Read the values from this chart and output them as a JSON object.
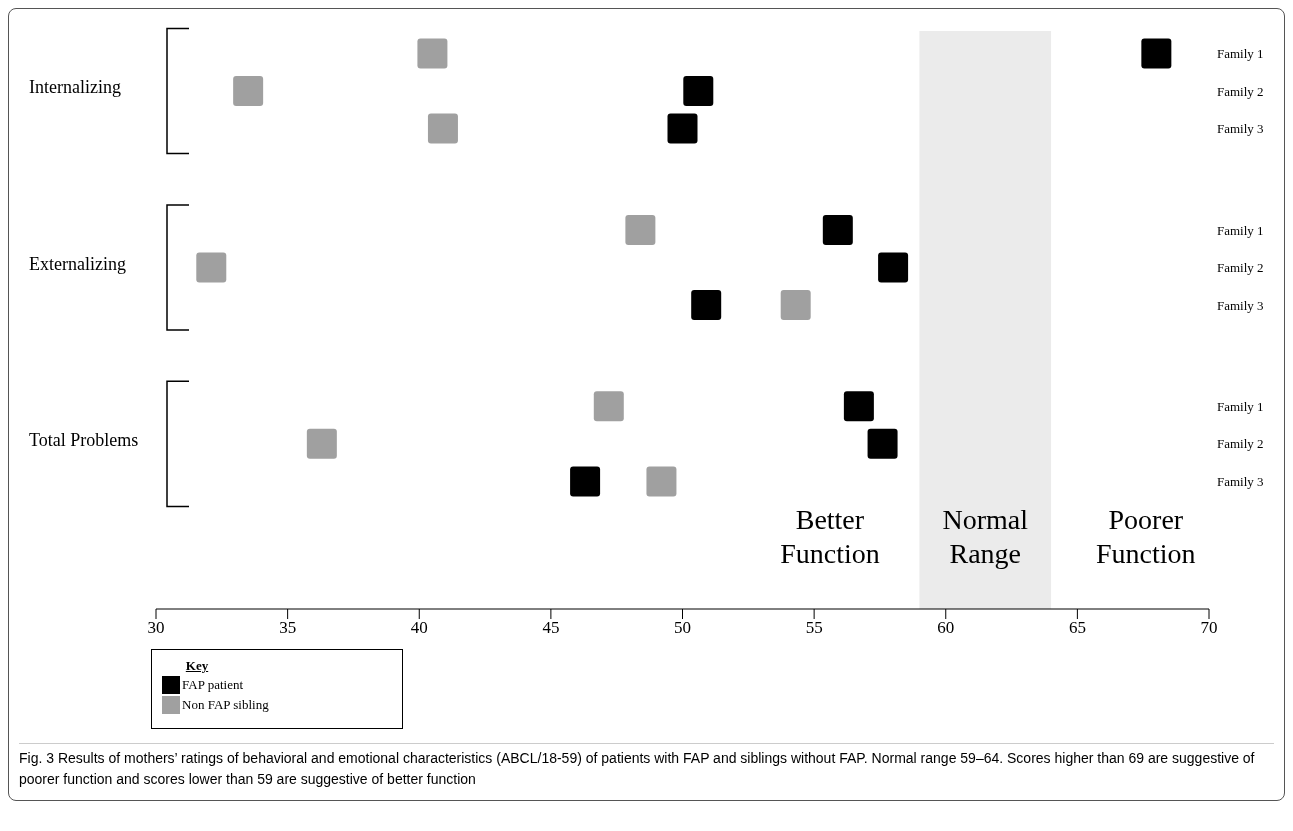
{
  "chart_data": {
    "type": "scatter",
    "orientation": "horizontal",
    "categories": [
      "Family 1",
      "Family 2",
      "Family 3",
      "Family 1",
      "Family 2",
      "Family 3",
      "Family 1",
      "Family 2",
      "Family 3"
    ],
    "series": [
      {
        "name": "FAP patient",
        "color": "#000000",
        "values": [
          68.0,
          50.6,
          50.0,
          55.9,
          58.0,
          50.9,
          56.7,
          57.6,
          46.3
        ]
      },
      {
        "name": "Non FAP sibling",
        "color": "#a0a0a0",
        "values": [
          40.5,
          33.5,
          40.9,
          48.4,
          32.1,
          54.3,
          47.2,
          36.3,
          49.2
        ]
      }
    ],
    "xlim": [
      30,
      70
    ],
    "xticks": [
      30,
      35,
      40,
      45,
      50,
      55,
      60,
      65,
      70
    ],
    "bands": [
      {
        "axis": "x",
        "from": 59,
        "to": 64,
        "label": "Normal Range",
        "color": "#ebebeb"
      }
    ],
    "annotations": [
      "Internalizing",
      "Externalizing",
      "Total Problems",
      "Better Function",
      "Poorer Function",
      "Fig. 3 Results of mothers’ ratings of behavioral and emotional characteristics (ABCL/18-59) of patients with FAP and siblings without FAP. Normal range 59–64. Scores higher than 69 are suggestive of poorer function and scores lower than 59 are suggestive of better function"
    ],
    "legend_title": "Key",
    "legend": "bottom left",
    "marker": "square",
    "grid": false
  }
}
